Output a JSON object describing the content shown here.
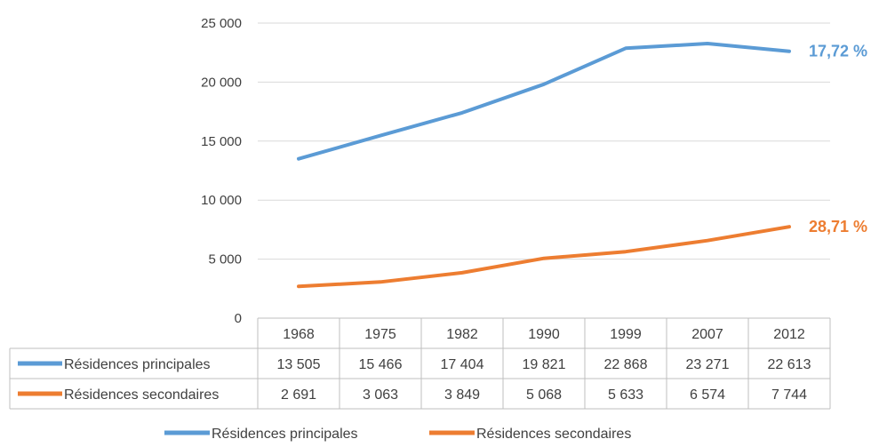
{
  "chart_data": {
    "type": "line",
    "categories": [
      "1968",
      "1975",
      "1982",
      "1990",
      "1999",
      "2007",
      "2012"
    ],
    "ylim": [
      0,
      25000
    ],
    "yticks": [
      "0",
      "5 000",
      "10 000",
      "15 000",
      "20 000",
      "25 000"
    ],
    "grid": true,
    "legend_placement": "bottom",
    "series": [
      {
        "name": "Résidences principales",
        "color": "#5B9BD5",
        "values": [
          13505,
          15466,
          17404,
          19821,
          22868,
          23271,
          22613
        ],
        "value_labels": [
          "13 505",
          "15 466",
          "17 404",
          "19 821",
          "22 868",
          "23 271",
          "22 613"
        ],
        "end_label": "17,72 %"
      },
      {
        "name": "Résidences secondaires",
        "color": "#ED7D31",
        "values": [
          2691,
          3063,
          3849,
          5068,
          5633,
          6574,
          7744
        ],
        "value_labels": [
          "2 691",
          "3 063",
          "3 849",
          "5 068",
          "5 633",
          "6 574",
          "7 744"
        ],
        "end_label": "28,71 %"
      }
    ]
  }
}
